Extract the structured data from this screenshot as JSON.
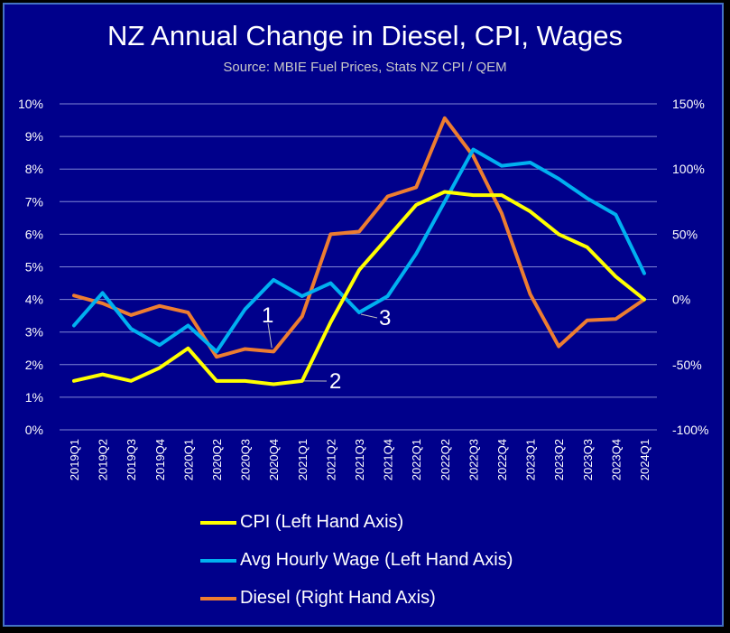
{
  "chart_data": {
    "type": "line",
    "title": "NZ Annual Change in Diesel, CPI, Wages",
    "subtitle": "Source: MBIE Fuel Prices, Stats NZ CPI / QEM",
    "categories": [
      "2019Q1",
      "2019Q2",
      "2019Q3",
      "2019Q4",
      "2020Q1",
      "2020Q2",
      "2020Q3",
      "2020Q4",
      "2021Q1",
      "2021Q2",
      "2021Q3",
      "2021Q4",
      "2022Q1",
      "2022Q2",
      "2022Q3",
      "2022Q4",
      "2023Q1",
      "2023Q2",
      "2023Q3",
      "2023Q4",
      "2024Q1"
    ],
    "left_axis": {
      "ylim": [
        0,
        10
      ],
      "ticks": [
        0,
        1,
        2,
        3,
        4,
        5,
        6,
        7,
        8,
        9,
        10
      ],
      "tick_labels": [
        "0%",
        "1%",
        "2%",
        "3%",
        "4%",
        "5%",
        "6%",
        "7%",
        "8%",
        "9%",
        "10%"
      ]
    },
    "right_axis": {
      "ylim": [
        -100,
        150
      ],
      "ticks": [
        -100,
        -50,
        0,
        50,
        100,
        150
      ],
      "tick_labels": [
        "-100%",
        "-50%",
        "0%",
        "50%",
        "100%",
        "150%"
      ]
    },
    "grid": true,
    "legend_position": "bottom",
    "series": [
      {
        "name": "CPI (Left Hand Axis)",
        "axis": "left",
        "color": "#ffff00",
        "values": [
          1.5,
          1.7,
          1.5,
          1.9,
          2.5,
          1.5,
          1.5,
          1.4,
          1.5,
          3.3,
          4.9,
          5.9,
          6.9,
          7.3,
          7.2,
          7.2,
          6.7,
          6.0,
          5.6,
          4.7,
          4.0
        ]
      },
      {
        "name": "Avg Hourly Wage (Left Hand Axis)",
        "axis": "left",
        "color": "#00b0f0",
        "values": [
          3.2,
          4.2,
          3.1,
          2.6,
          3.2,
          2.4,
          3.7,
          4.6,
          4.1,
          4.5,
          3.6,
          4.1,
          5.4,
          7.0,
          8.6,
          8.1,
          8.2,
          7.7,
          7.1,
          6.6,
          4.8
        ]
      },
      {
        "name": "Diesel (Right Hand Axis)",
        "axis": "right",
        "color": "#ed7d31",
        "values": [
          3,
          -3,
          -12,
          -5,
          -10,
          -44,
          -38,
          -40,
          -13,
          50,
          52,
          79,
          86,
          139,
          110,
          66,
          4,
          -36,
          -16,
          -15,
          0
        ]
      }
    ],
    "annotations": [
      {
        "label": "1",
        "target_series": "Diesel (Right Hand Axis)",
        "category": "2020Q4"
      },
      {
        "label": "2",
        "target_series": "CPI (Left Hand Axis)",
        "category": "2021Q1"
      },
      {
        "label": "3",
        "target_series": "Avg Hourly Wage (Left Hand Axis)",
        "category": "2021Q3"
      }
    ]
  }
}
